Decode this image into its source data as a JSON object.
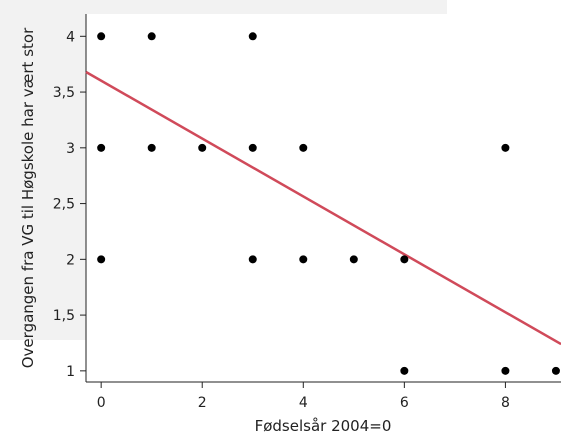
{
  "chart_data": {
    "type": "scatter",
    "title": "",
    "xlabel": "Fødselsår 2004=0",
    "ylabel": "Overgangen fra VG til Høgskole har vært stor",
    "xlim": [
      -0.3,
      9.1
    ],
    "ylim": [
      0.9,
      4.2
    ],
    "x_ticks": [
      0,
      2,
      4,
      6,
      8
    ],
    "x_tick_labels": [
      "0",
      "2",
      "4",
      "6",
      "8"
    ],
    "y_ticks": [
      1,
      1.5,
      2,
      2.5,
      3,
      3.5,
      4
    ],
    "y_tick_labels": [
      "1",
      "1,5",
      "2",
      "2,5",
      "3",
      "3,5",
      "4"
    ],
    "grid": false,
    "points": [
      {
        "x": 0,
        "y": 4
      },
      {
        "x": 1,
        "y": 4
      },
      {
        "x": 3,
        "y": 4
      },
      {
        "x": 0,
        "y": 3
      },
      {
        "x": 1,
        "y": 3
      },
      {
        "x": 2,
        "y": 3
      },
      {
        "x": 3,
        "y": 3
      },
      {
        "x": 4,
        "y": 3
      },
      {
        "x": 8,
        "y": 3
      },
      {
        "x": 0,
        "y": 2
      },
      {
        "x": 3,
        "y": 2
      },
      {
        "x": 4,
        "y": 2
      },
      {
        "x": 5,
        "y": 2
      },
      {
        "x": 6,
        "y": 2
      },
      {
        "x": 6,
        "y": 1
      },
      {
        "x": 8,
        "y": 1
      },
      {
        "x": 9,
        "y": 1
      }
    ],
    "trend_line": {
      "x": [
        -0.3,
        9.1
      ],
      "y": [
        3.68,
        1.24
      ],
      "color": "#d04a5a"
    },
    "point_color": "#000000"
  }
}
